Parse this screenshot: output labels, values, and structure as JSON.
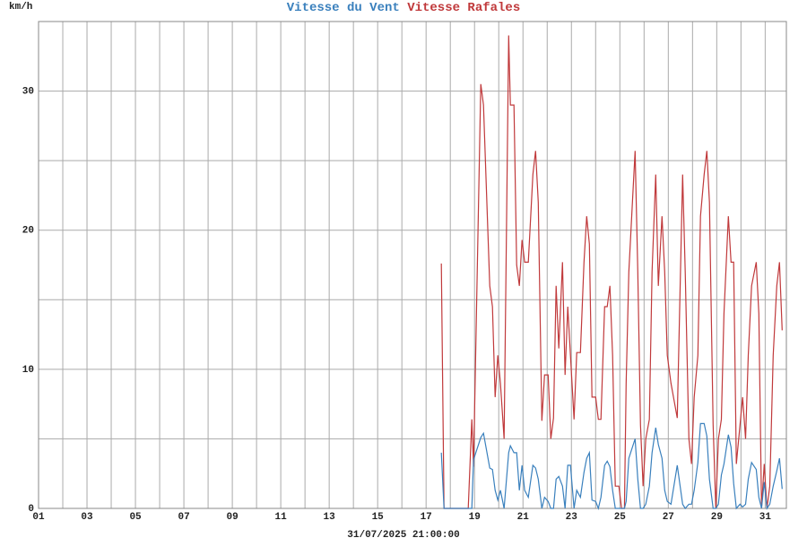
{
  "chart_data": {
    "type": "line",
    "y_unit": "km/h",
    "footer": "31/07/2025 21:00:00",
    "x": [
      17.63,
      17.74,
      18.74,
      18.89,
      18.96,
      19.26,
      19.37,
      19.63,
      19.74,
      19.85,
      19.96,
      20.07,
      20.22,
      20.41,
      20.48,
      20.63,
      20.74,
      20.85,
      20.96,
      21.07,
      21.22,
      21.41,
      21.52,
      21.63,
      21.78,
      21.89,
      22.04,
      22.15,
      22.26,
      22.37,
      22.48,
      22.63,
      22.74,
      22.85,
      22.96,
      23.11,
      23.22,
      23.37,
      23.52,
      23.63,
      23.74,
      23.85,
      24.0,
      24.11,
      24.22,
      24.37,
      24.48,
      24.59,
      24.7,
      24.81,
      24.96,
      25.07,
      25.19,
      25.26,
      25.37,
      25.52,
      25.63,
      25.74,
      25.85,
      25.96,
      26.07,
      26.22,
      26.33,
      26.48,
      26.59,
      26.74,
      26.85,
      26.96,
      27.11,
      27.37,
      27.59,
      27.7,
      27.85,
      27.96,
      28.07,
      28.22,
      28.33,
      28.48,
      28.59,
      28.7,
      28.85,
      28.96,
      29.07,
      29.19,
      29.3,
      29.48,
      29.59,
      29.7,
      29.81,
      29.96,
      30.07,
      30.19,
      30.3,
      30.44,
      30.63,
      30.74,
      30.85,
      30.96,
      31.07,
      31.19,
      31.33,
      31.48,
      31.59,
      31.7
    ],
    "series": [
      {
        "name": "Vitesse du Vent",
        "color": "#3a80bd",
        "values": [
          4,
          0,
          0,
          0,
          3.5,
          5.1,
          5.4,
          2.9,
          2.8,
          1.3,
          0.6,
          1.3,
          0,
          4,
          4.5,
          4,
          4,
          1.3,
          3.1,
          1.3,
          0.8,
          3.1,
          2.9,
          2.1,
          0,
          0.8,
          0.5,
          0,
          0,
          2.1,
          2.3,
          1.6,
          0,
          3.1,
          3.1,
          0,
          1.3,
          0.8,
          2.6,
          3.6,
          4,
          0.6,
          0.5,
          0,
          0.8,
          3.1,
          3.4,
          3,
          1.3,
          0,
          0,
          0,
          0,
          0.5,
          3.6,
          4.4,
          5,
          2.1,
          0,
          0,
          0.3,
          1.6,
          4,
          5.8,
          4.6,
          3.6,
          1.3,
          0.5,
          0.3,
          3.1,
          0.3,
          0,
          0.3,
          0.3,
          1.3,
          3.3,
          6.1,
          6.1,
          5.2,
          2.1,
          0,
          0,
          0.3,
          2.4,
          3.2,
          5.3,
          4.4,
          1.8,
          0,
          0.3,
          0.1,
          0.3,
          2.1,
          3.3,
          2.8,
          0.8,
          0,
          1.9,
          0,
          0.3,
          1.6,
          2.7,
          3.6,
          1.4
        ]
      },
      {
        "name": "Vitesse Rafales",
        "color": "#c0393b",
        "values": [
          17.6,
          0,
          0,
          6.4,
          3,
          30.5,
          29,
          16,
          14.5,
          8,
          11,
          9,
          5,
          34,
          29,
          29,
          17.5,
          16,
          19.3,
          17.7,
          17.7,
          24,
          25.7,
          22,
          6.3,
          9.6,
          9.6,
          5,
          6.5,
          16,
          11.5,
          17.7,
          9.6,
          14.5,
          11,
          6.4,
          11.2,
          11.2,
          17.7,
          21,
          19,
          8,
          8,
          6.4,
          6.4,
          14.5,
          14.5,
          16,
          11,
          1.6,
          1.6,
          0,
          0,
          9,
          17,
          22,
          25.7,
          17,
          6,
          1.6,
          5,
          6.4,
          17,
          24,
          16,
          21,
          17,
          11,
          9,
          6.5,
          24,
          17,
          5,
          3.2,
          8,
          11,
          21,
          24,
          25.7,
          22,
          6,
          0,
          5,
          6.4,
          14,
          21,
          17.7,
          17.7,
          3.2,
          6,
          8,
          5,
          11,
          16,
          17.7,
          14,
          0,
          3.2,
          0,
          1.6,
          11,
          16,
          17.7,
          12.8
        ]
      }
    ],
    "xlim": [
      1,
      31.875
    ],
    "xticks": [
      {
        "value": 1,
        "label": "01"
      },
      {
        "value": 3,
        "label": "03"
      },
      {
        "value": 5,
        "label": "05"
      },
      {
        "value": 7,
        "label": "07"
      },
      {
        "value": 9,
        "label": "09"
      },
      11,
      13,
      15,
      17,
      19,
      21,
      23,
      25,
      27,
      29,
      31
    ],
    "x_minor_ticks": [
      2,
      4,
      6,
      8,
      10,
      12,
      14,
      16,
      18,
      20,
      22,
      24,
      26,
      28,
      30
    ],
    "ylim": [
      0,
      35
    ],
    "yticks": [
      0,
      10,
      20,
      30
    ],
    "y_minor_ticks": [
      5,
      15,
      25
    ],
    "grid": true
  }
}
